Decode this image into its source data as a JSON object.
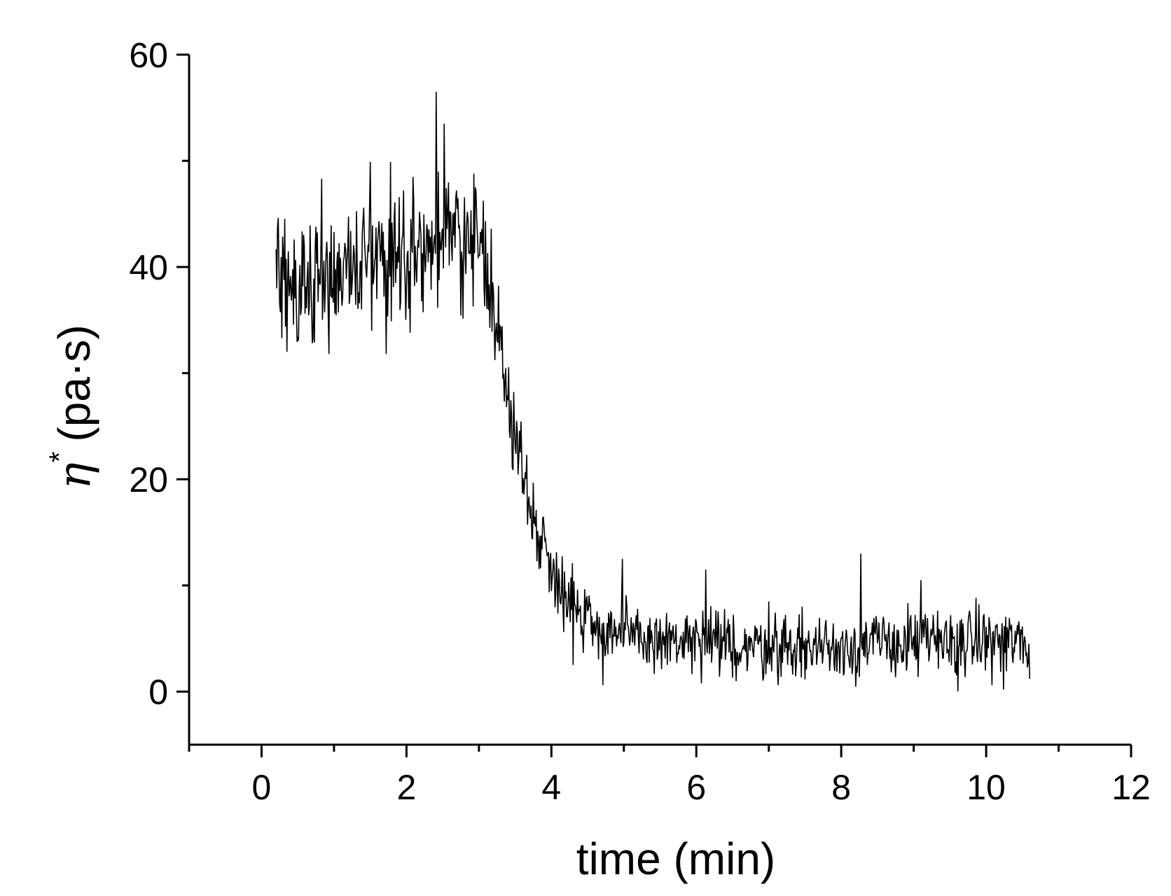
{
  "chart_data": {
    "type": "line",
    "title": "",
    "xlabel": "time (min)",
    "ylabel": {
      "symbol": "η",
      "superscript": "*",
      "unit": "(pa·s)"
    },
    "xlim": [
      -1,
      12
    ],
    "ylim": [
      -5,
      60
    ],
    "xticks": [
      0,
      2,
      4,
      6,
      8,
      10,
      12
    ],
    "xticks_minor": [
      -1,
      1,
      3,
      5,
      7,
      9,
      11
    ],
    "yticks": [
      0,
      20,
      40,
      60
    ],
    "yticks_minor": [
      10,
      30,
      50
    ],
    "grid": false,
    "legend": "none",
    "line_color": "#000000",
    "series": [
      {
        "points": [
          [
            0.2,
            39
          ],
          [
            0.3,
            38
          ],
          [
            0.4,
            38.5
          ],
          [
            0.5,
            38
          ],
          [
            0.6,
            39
          ],
          [
            0.7,
            38.5
          ],
          [
            0.8,
            40
          ],
          [
            0.9,
            39
          ],
          [
            1.0,
            40
          ],
          [
            1.1,
            39.5
          ],
          [
            1.2,
            40.5
          ],
          [
            1.3,
            40
          ],
          [
            1.4,
            40.5
          ],
          [
            1.5,
            41
          ],
          [
            1.6,
            41
          ],
          [
            1.7,
            41
          ],
          [
            1.8,
            41.5
          ],
          [
            1.9,
            41
          ],
          [
            2.0,
            42
          ],
          [
            2.1,
            42
          ],
          [
            2.2,
            42
          ],
          [
            2.3,
            42
          ],
          [
            2.4,
            42.5
          ],
          [
            2.5,
            43
          ],
          [
            2.6,
            42.5
          ],
          [
            2.7,
            42.5
          ],
          [
            2.8,
            42.5
          ],
          [
            2.9,
            42
          ],
          [
            3.0,
            42
          ],
          [
            3.1,
            41
          ],
          [
            3.15,
            40
          ],
          [
            3.2,
            37
          ],
          [
            3.3,
            32
          ],
          [
            3.4,
            27
          ],
          [
            3.5,
            24
          ],
          [
            3.6,
            21
          ],
          [
            3.7,
            18
          ],
          [
            3.8,
            15.5
          ],
          [
            3.9,
            13.5
          ],
          [
            4.0,
            12
          ],
          [
            4.1,
            10.5
          ],
          [
            4.2,
            9.5
          ],
          [
            4.3,
            8.5
          ],
          [
            4.4,
            7.8
          ],
          [
            4.5,
            7
          ],
          [
            4.6,
            6.5
          ],
          [
            4.7,
            6
          ],
          [
            4.8,
            5.8
          ],
          [
            4.9,
            5.5
          ],
          [
            5.0,
            5.2
          ],
          [
            5.25,
            5
          ],
          [
            5.5,
            4.8
          ],
          [
            5.75,
            4.6
          ],
          [
            6.0,
            4.5
          ],
          [
            6.5,
            4.3
          ],
          [
            7.0,
            4.3
          ],
          [
            7.5,
            4.2
          ],
          [
            8.0,
            4.3
          ],
          [
            8.5,
            4.5
          ],
          [
            9.0,
            4.6
          ],
          [
            9.5,
            4.7
          ],
          [
            10.0,
            4.8
          ],
          [
            10.3,
            4.7
          ],
          [
            10.6,
            4.5
          ]
        ],
        "noise_amplitude": [
          [
            0.2,
            5
          ],
          [
            3.1,
            5
          ],
          [
            3.4,
            3.5
          ],
          [
            4.0,
            3
          ],
          [
            5.0,
            2.7
          ],
          [
            10.6,
            2.7
          ]
        ],
        "sample_step": 0.01,
        "peaks": [
          [
            2.41,
            56.5
          ],
          [
            2.52,
            53.5
          ],
          [
            1.5,
            49.9
          ],
          [
            1.78,
            49.9
          ],
          [
            0.83,
            48.3
          ],
          [
            8.27,
            13.0
          ],
          [
            4.98,
            12.5
          ],
          [
            6.13,
            11.5
          ],
          [
            7.0,
            8.5
          ],
          [
            9.1,
            10.5
          ]
        ],
        "troughs": [
          [
            0.93,
            31.8
          ],
          [
            1.72,
            31.8
          ],
          [
            0.35,
            32
          ],
          [
            2.05,
            33.8
          ],
          [
            4.3,
            2.5
          ],
          [
            4.71,
            0.6
          ],
          [
            9.61,
            0
          ],
          [
            10.24,
            0.2
          ],
          [
            10.6,
            1.2
          ]
        ]
      }
    ]
  }
}
